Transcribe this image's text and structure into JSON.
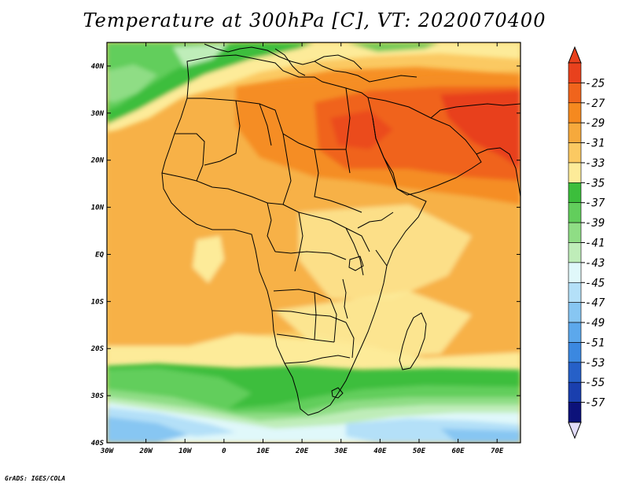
{
  "title": "Temperature at 300hPa [C], VT: 2020070400",
  "credit": "GrADS: IGES/COLA",
  "map": {
    "variable": "Temperature at 300hPa",
    "units": "C",
    "valid_time": "2020070400",
    "projection": "latlon",
    "lon_range": [
      -30,
      76
    ],
    "lat_range": [
      -40,
      45
    ],
    "x_ticks": [
      {
        "value": -30,
        "label": "30W"
      },
      {
        "value": -20,
        "label": "20W"
      },
      {
        "value": -10,
        "label": "10W"
      },
      {
        "value": 0,
        "label": "0"
      },
      {
        "value": 10,
        "label": "10E"
      },
      {
        "value": 20,
        "label": "20E"
      },
      {
        "value": 30,
        "label": "30E"
      },
      {
        "value": 40,
        "label": "40E"
      },
      {
        "value": 50,
        "label": "50E"
      },
      {
        "value": 60,
        "label": "60E"
      },
      {
        "value": 70,
        "label": "70E"
      }
    ],
    "y_ticks": [
      {
        "value": 40,
        "label": "40N"
      },
      {
        "value": 30,
        "label": "30N"
      },
      {
        "value": 20,
        "label": "20N"
      },
      {
        "value": 10,
        "label": "10N"
      },
      {
        "value": 0,
        "label": "EQ"
      },
      {
        "value": -10,
        "label": "10S"
      },
      {
        "value": -20,
        "label": "20S"
      },
      {
        "value": -30,
        "label": "30S"
      },
      {
        "value": -40,
        "label": "40S"
      }
    ]
  },
  "colorbar": {
    "orientation": "vertical",
    "labels": [
      "-25",
      "-27",
      "-29",
      "-31",
      "-33",
      "-35",
      "-37",
      "-39",
      "-41",
      "-43",
      "-45",
      "-47",
      "-49",
      "-51",
      "-53",
      "-55",
      "-57"
    ],
    "colors_warm_to_cold": [
      "#e8411d",
      "#f0641c",
      "#f5891f",
      "#f6a93c",
      "#fbc962",
      "#fdeb99",
      "#3cbe3c",
      "#62ce5c",
      "#8fdd85",
      "#bfedb9",
      "#e0f8fa",
      "#b4e0f8",
      "#87c6f2",
      "#5ca8ec",
      "#3b88e0",
      "#2660c8",
      "#1a3fae",
      "#0c127a"
    ],
    "over_color": "#e8411d",
    "under_color": "#e2dcfa"
  },
  "colors": {
    "frame": "#000000",
    "borders": "#000000",
    "background": "#ffffff"
  }
}
